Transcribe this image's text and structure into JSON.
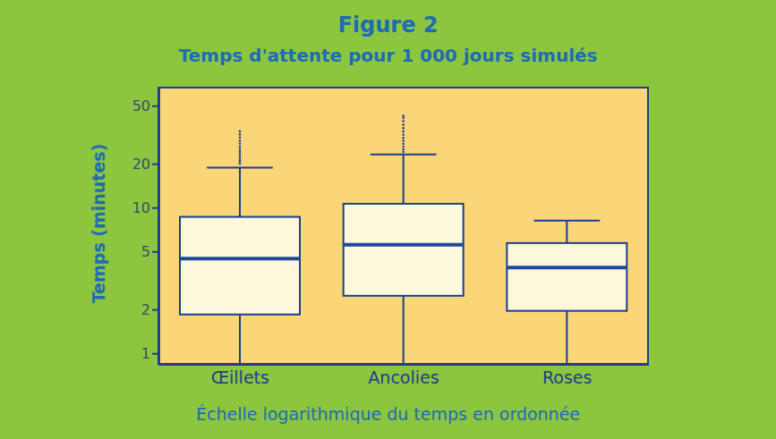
{
  "chart_data": {
    "type": "boxplot",
    "title": "Figure 2",
    "subtitle": "Temps d'attente pour 1 000 jours simulés",
    "y_label": "Temps (minutes)",
    "x_label": "Échelle logarithmique du temps en ordonnée",
    "categories": [
      "Œillets",
      "Ancolies",
      "Roses"
    ],
    "min": [
      0.84,
      0.84,
      0.84
    ],
    "q1": [
      1.86,
      2.5,
      1.97
    ],
    "median": [
      4.5,
      5.6,
      3.9
    ],
    "q3": [
      8.7,
      10.7,
      5.75
    ],
    "max": [
      18.9,
      23.3,
      8.2
    ],
    "outliers": [
      [
        20.2,
        21,
        21.8,
        22.6,
        23.5,
        24.4,
        25.4,
        26.5,
        27.7,
        29,
        30.5,
        32,
        33.6
      ],
      [
        24.3,
        25.3,
        26.4,
        27.6,
        28.9,
        30.3,
        31.8,
        33.5,
        35.3,
        37.3,
        39.5,
        41.5,
        42.9
      ],
      []
    ],
    "ylim": [
      0.84,
      68
    ],
    "yticks": [
      1,
      2,
      5,
      10,
      20,
      50
    ],
    "log": "y",
    "color": "#fdf7dc"
  }
}
